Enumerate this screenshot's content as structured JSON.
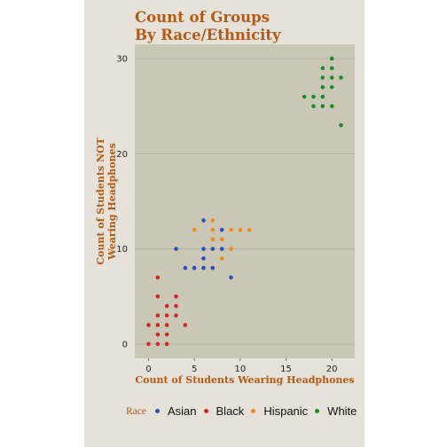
{
  "chart_data": {
    "type": "scatter",
    "title": [
      "Count of Groups",
      "By Race/Ethnicity"
    ],
    "xlabel": "Count of Students Wearing Headphones",
    "ylabel": [
      "Count of Students NOT",
      "Wearing Headphones"
    ],
    "xlim": [
      -1.5,
      22.5
    ],
    "ylim": [
      -1.5,
      31.5
    ],
    "x_ticks": [
      0,
      5,
      10,
      15,
      20
    ],
    "y_ticks": [
      0,
      10,
      20,
      30
    ],
    "grid": "horizontal",
    "legend_title": "Race",
    "legend_position": "bottom",
    "series": [
      {
        "name": "Asian",
        "color": "#2b4fb8",
        "points": [
          [
            3,
            10
          ],
          [
            4,
            8
          ],
          [
            5,
            8
          ],
          [
            6,
            8
          ],
          [
            6,
            9
          ],
          [
            6,
            10
          ],
          [
            6,
            13
          ],
          [
            7,
            8
          ],
          [
            7,
            10
          ],
          [
            8,
            10
          ],
          [
            8,
            12
          ],
          [
            9,
            7
          ]
        ]
      },
      {
        "name": "Black",
        "color": "#cc2a20",
        "points": [
          [
            0,
            0
          ],
          [
            0,
            2
          ],
          [
            1,
            0
          ],
          [
            1,
            1
          ],
          [
            1,
            2
          ],
          [
            1,
            3
          ],
          [
            1,
            5
          ],
          [
            1,
            7
          ],
          [
            2,
            0
          ],
          [
            2,
            1
          ],
          [
            2,
            2
          ],
          [
            2,
            3
          ],
          [
            2,
            4
          ],
          [
            3,
            3
          ],
          [
            3,
            4
          ],
          [
            3,
            5
          ],
          [
            4,
            2
          ]
        ]
      },
      {
        "name": "Hispanic",
        "color": "#f08a1c",
        "points": [
          [
            5,
            12
          ],
          [
            7,
            11
          ],
          [
            7,
            12
          ],
          [
            7,
            13
          ],
          [
            8,
            9
          ],
          [
            8,
            11
          ],
          [
            9,
            10
          ],
          [
            9,
            12
          ],
          [
            10,
            12
          ],
          [
            11,
            12
          ]
        ]
      },
      {
        "name": "White",
        "color": "#1e8c28",
        "points": [
          [
            17,
            26
          ],
          [
            18,
            25
          ],
          [
            18,
            26
          ],
          [
            19,
            25
          ],
          [
            19,
            26
          ],
          [
            19,
            27
          ],
          [
            19,
            28
          ],
          [
            19,
            29
          ],
          [
            20,
            25
          ],
          [
            20,
            27
          ],
          [
            20,
            28
          ],
          [
            20,
            29
          ],
          [
            20,
            30
          ],
          [
            21,
            23
          ],
          [
            21,
            28
          ]
        ]
      }
    ]
  }
}
